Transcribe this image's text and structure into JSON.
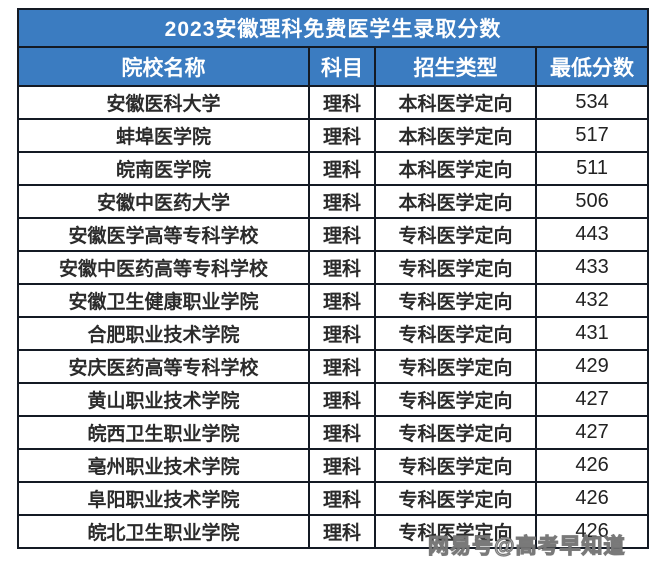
{
  "chart_data": {
    "type": "table",
    "title": "2023安徽理科免费医学生录取分数",
    "columns": [
      "院校名称",
      "科目",
      "招生类型",
      "最低分数"
    ],
    "rows": [
      [
        "安徽医科大学",
        "理科",
        "本科医学定向",
        534
      ],
      [
        "蚌埠医学院",
        "理科",
        "本科医学定向",
        517
      ],
      [
        "皖南医学院",
        "理科",
        "本科医学定向",
        511
      ],
      [
        "安徽中医药大学",
        "理科",
        "本科医学定向",
        506
      ],
      [
        "安徽医学高等专科学校",
        "理科",
        "专科医学定向",
        443
      ],
      [
        "安徽中医药高等专科学校",
        "理科",
        "专科医学定向",
        433
      ],
      [
        "安徽卫生健康职业学院",
        "理科",
        "专科医学定向",
        432
      ],
      [
        "合肥职业技术学院",
        "理科",
        "专科医学定向",
        431
      ],
      [
        "安庆医药高等专科学校",
        "理科",
        "专科医学定向",
        429
      ],
      [
        "黄山职业技术学院",
        "理科",
        "专科医学定向",
        427
      ],
      [
        "皖西卫生职业学院",
        "理科",
        "专科医学定向",
        427
      ],
      [
        "亳州职业技术学院",
        "理科",
        "专科医学定向",
        426
      ],
      [
        "阜阳职业技术学院",
        "理科",
        "专科医学定向",
        426
      ],
      [
        "皖北卫生职业学院",
        "理科",
        "专科医学定向",
        426
      ]
    ],
    "layout_hints": {
      "grid": true,
      "header_position": "top",
      "score_sort": "descending"
    }
  },
  "watermark": {
    "text": "网易号@高考早知道"
  },
  "colors": {
    "header_bg": "#3b7cc1",
    "header_text": "#ffffff",
    "border": "#141a24",
    "cell_text": "#2b2b2b",
    "page_bg": "#ffffff",
    "watermark_gray": "#9a9a9a"
  }
}
